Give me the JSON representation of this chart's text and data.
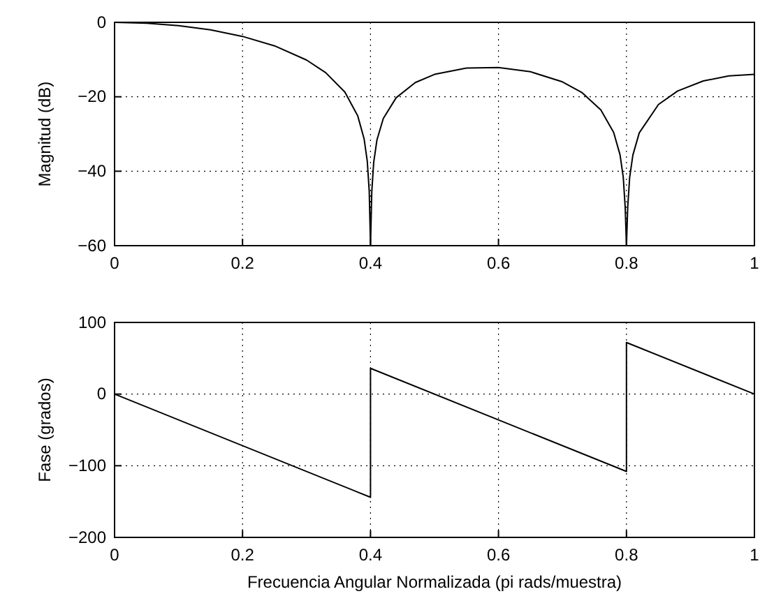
{
  "chart_data": [
    {
      "type": "line",
      "ylabel": "Magnitud (dB)",
      "xlim": [
        0,
        1
      ],
      "xticks": [
        0,
        0.2,
        0.4,
        0.6,
        0.8,
        1
      ],
      "ylim": [
        -60,
        0
      ],
      "yticks": [
        -60,
        -40,
        -20,
        0
      ],
      "grid": true,
      "line_style": "solid",
      "marker": "none",
      "series": [
        {
          "color": "#000000",
          "x": [
            0,
            0.05,
            0.1,
            0.15,
            0.2,
            0.25,
            0.3,
            0.33,
            0.36,
            0.38,
            0.39,
            0.395,
            0.398,
            0.4,
            0.402,
            0.405,
            0.41,
            0.42,
            0.44,
            0.47,
            0.5,
            0.55,
            0.6,
            0.65,
            0.7,
            0.73,
            0.76,
            0.78,
            0.79,
            0.795,
            0.798,
            0.8,
            0.802,
            0.805,
            0.81,
            0.82,
            0.85,
            0.88,
            0.92,
            0.96,
            1
          ],
          "values": [
            0,
            -0.22,
            -0.88,
            -2.03,
            -3.78,
            -6.32,
            -10.13,
            -13.52,
            -18.76,
            -25.1,
            -31.3,
            -37.4,
            -45.4,
            -60,
            -45.5,
            -37.6,
            -31.65,
            -25.84,
            -20.27,
            -16.18,
            -13.98,
            -12.29,
            -12.15,
            -13.28,
            -15.99,
            -18.81,
            -23.55,
            -29.57,
            -35.6,
            -41.6,
            -49.6,
            -60,
            -49.6,
            -41.7,
            -35.7,
            -29.7,
            -22.08,
            -18.44,
            -15.75,
            -14.4,
            -13.98
          ]
        }
      ]
    },
    {
      "type": "line",
      "xlabel": "Frecuencia Angular Normalizada (pi rads/muestra)",
      "ylabel": "Fase (grados)",
      "xlim": [
        0,
        1
      ],
      "xticks": [
        0,
        0.2,
        0.4,
        0.6,
        0.8,
        1
      ],
      "ylim": [
        -200,
        100
      ],
      "yticks": [
        -200,
        -100,
        0,
        100
      ],
      "grid": true,
      "line_style": "solid",
      "marker": "none",
      "series": [
        {
          "color": "#000000",
          "x": [
            0,
            0.4,
            0.4,
            0.8,
            0.8,
            1
          ],
          "values": [
            0,
            -144,
            36,
            -108,
            72,
            0
          ]
        }
      ]
    }
  ]
}
